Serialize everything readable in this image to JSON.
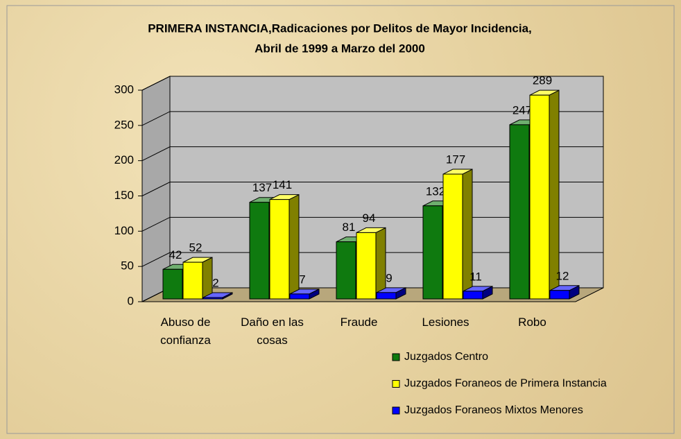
{
  "chart_data": {
    "type": "bar3d",
    "title": [
      "PRIMERA INSTANCIA,Radicaciones por Delitos de Mayor Incidencia,",
      "Abril de 1999 a Marzo del 2000"
    ],
    "categories": [
      "Abuso de confianza",
      "Daño en las cosas",
      "Fraude",
      "Lesiones",
      "Robo"
    ],
    "series": [
      {
        "name": "Juzgados Centro",
        "color": "#0f7a0f",
        "values": [
          42,
          137,
          81,
          132,
          247
        ]
      },
      {
        "name": "Juzgados Foraneos de Primera Instancia",
        "color": "#ffff00",
        "values": [
          52,
          141,
          94,
          177,
          289
        ]
      },
      {
        "name": "Juzgados Foraneos Mixtos Menores",
        "color": "#0000ff",
        "values": [
          2,
          7,
          9,
          11,
          12
        ]
      }
    ],
    "ylim": [
      0,
      300
    ],
    "yticks": [
      0,
      50,
      100,
      150,
      200,
      250,
      300
    ],
    "grid": true
  }
}
